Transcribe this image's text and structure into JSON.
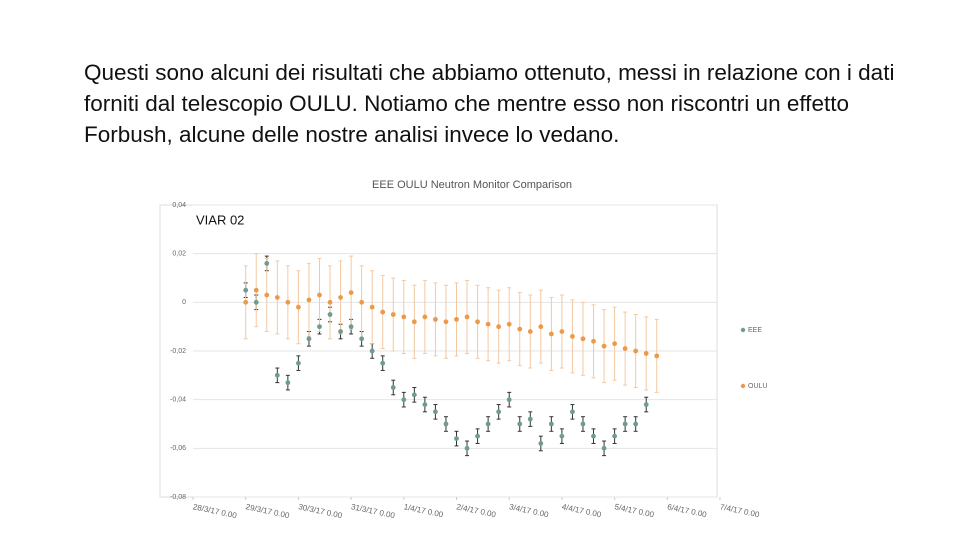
{
  "paragraph": "Questi sono alcuni dei risultati che abbiamo ottenuto, messi in relazione con i dati forniti dal telescopio OULU. Notiamo che mentre esso non riscontri un effetto Forbush, alcune delle nostre analisi invece lo vedano.",
  "chart_data": {
    "type": "scatter",
    "title": "EEE OULU Neutron Monitor Comparison",
    "annotation": "VIAR 02",
    "x": [
      1.0,
      1.2,
      1.4,
      1.6,
      1.8,
      2.0,
      2.2,
      2.4,
      2.6,
      2.8,
      3.0,
      3.2,
      3.4,
      3.6,
      3.8,
      4.0,
      4.2,
      4.4,
      4.6,
      4.8,
      5.0,
      5.2,
      5.4,
      5.6,
      5.8,
      6.0,
      6.2,
      6.4,
      6.6,
      6.8,
      7.0,
      7.2,
      7.4,
      7.6,
      7.8,
      8.0,
      8.2,
      8.4,
      8.6,
      8.8
    ],
    "series": [
      {
        "name": "EEE",
        "color": "#6f9b94",
        "error_color": "#333333",
        "error": 0.003,
        "values": [
          0.005,
          0.0,
          0.016,
          -0.03,
          -0.033,
          -0.025,
          -0.015,
          -0.01,
          -0.005,
          -0.012,
          -0.01,
          -0.015,
          -0.02,
          -0.025,
          -0.035,
          -0.04,
          -0.038,
          -0.042,
          -0.045,
          -0.05,
          -0.056,
          -0.06,
          -0.055,
          -0.05,
          -0.045,
          -0.04,
          -0.05,
          -0.048,
          -0.058,
          -0.05,
          -0.055,
          -0.045,
          -0.05,
          -0.055,
          -0.06,
          -0.055,
          -0.05,
          -0.05,
          -0.042,
          null
        ]
      },
      {
        "name": "OULU",
        "color": "#ec9a4a",
        "error_color": "#f3c9a2",
        "error": 0.015,
        "values": [
          0.0,
          0.005,
          0.003,
          0.002,
          0.0,
          -0.002,
          0.001,
          0.003,
          0.0,
          0.002,
          0.004,
          0.0,
          -0.002,
          -0.004,
          -0.005,
          -0.006,
          -0.008,
          -0.006,
          -0.007,
          -0.008,
          -0.007,
          -0.006,
          -0.008,
          -0.009,
          -0.01,
          -0.009,
          -0.011,
          -0.012,
          -0.01,
          -0.013,
          -0.012,
          -0.014,
          -0.015,
          -0.016,
          -0.018,
          -0.017,
          -0.019,
          -0.02,
          -0.021,
          -0.022
        ]
      }
    ],
    "xlim": [
      0,
      10
    ],
    "xticks": [
      {
        "value": 0,
        "label": "28/3/17 0.00"
      },
      {
        "value": 1,
        "label": "29/3/17 0.00"
      },
      {
        "value": 2,
        "label": "30/3/17 0.00"
      },
      {
        "value": 3,
        "label": "31/3/17 0.00"
      },
      {
        "value": 4,
        "label": "1/4/17 0.00"
      },
      {
        "value": 5,
        "label": "2/4/17 0.00"
      },
      {
        "value": 6,
        "label": "3/4/17 0.00"
      },
      {
        "value": 7,
        "label": "4/4/17 0.00"
      },
      {
        "value": 8,
        "label": "5/4/17 0.00"
      },
      {
        "value": 9,
        "label": "6/4/17 0.00"
      },
      {
        "value": 10,
        "label": "7/4/17 0.00"
      }
    ],
    "ylim": [
      -0.08,
      0.04
    ],
    "yticks": [
      {
        "value": 0.04,
        "label": "0,04"
      },
      {
        "value": 0.02,
        "label": "0,02"
      },
      0,
      {
        "value": -0.02,
        "label": "-0,02"
      },
      {
        "value": -0.04,
        "label": "-0,04"
      },
      {
        "value": -0.06,
        "label": "-0,06"
      },
      {
        "value": -0.08,
        "label": "-0,08"
      }
    ],
    "grid": true,
    "legend": "right"
  }
}
